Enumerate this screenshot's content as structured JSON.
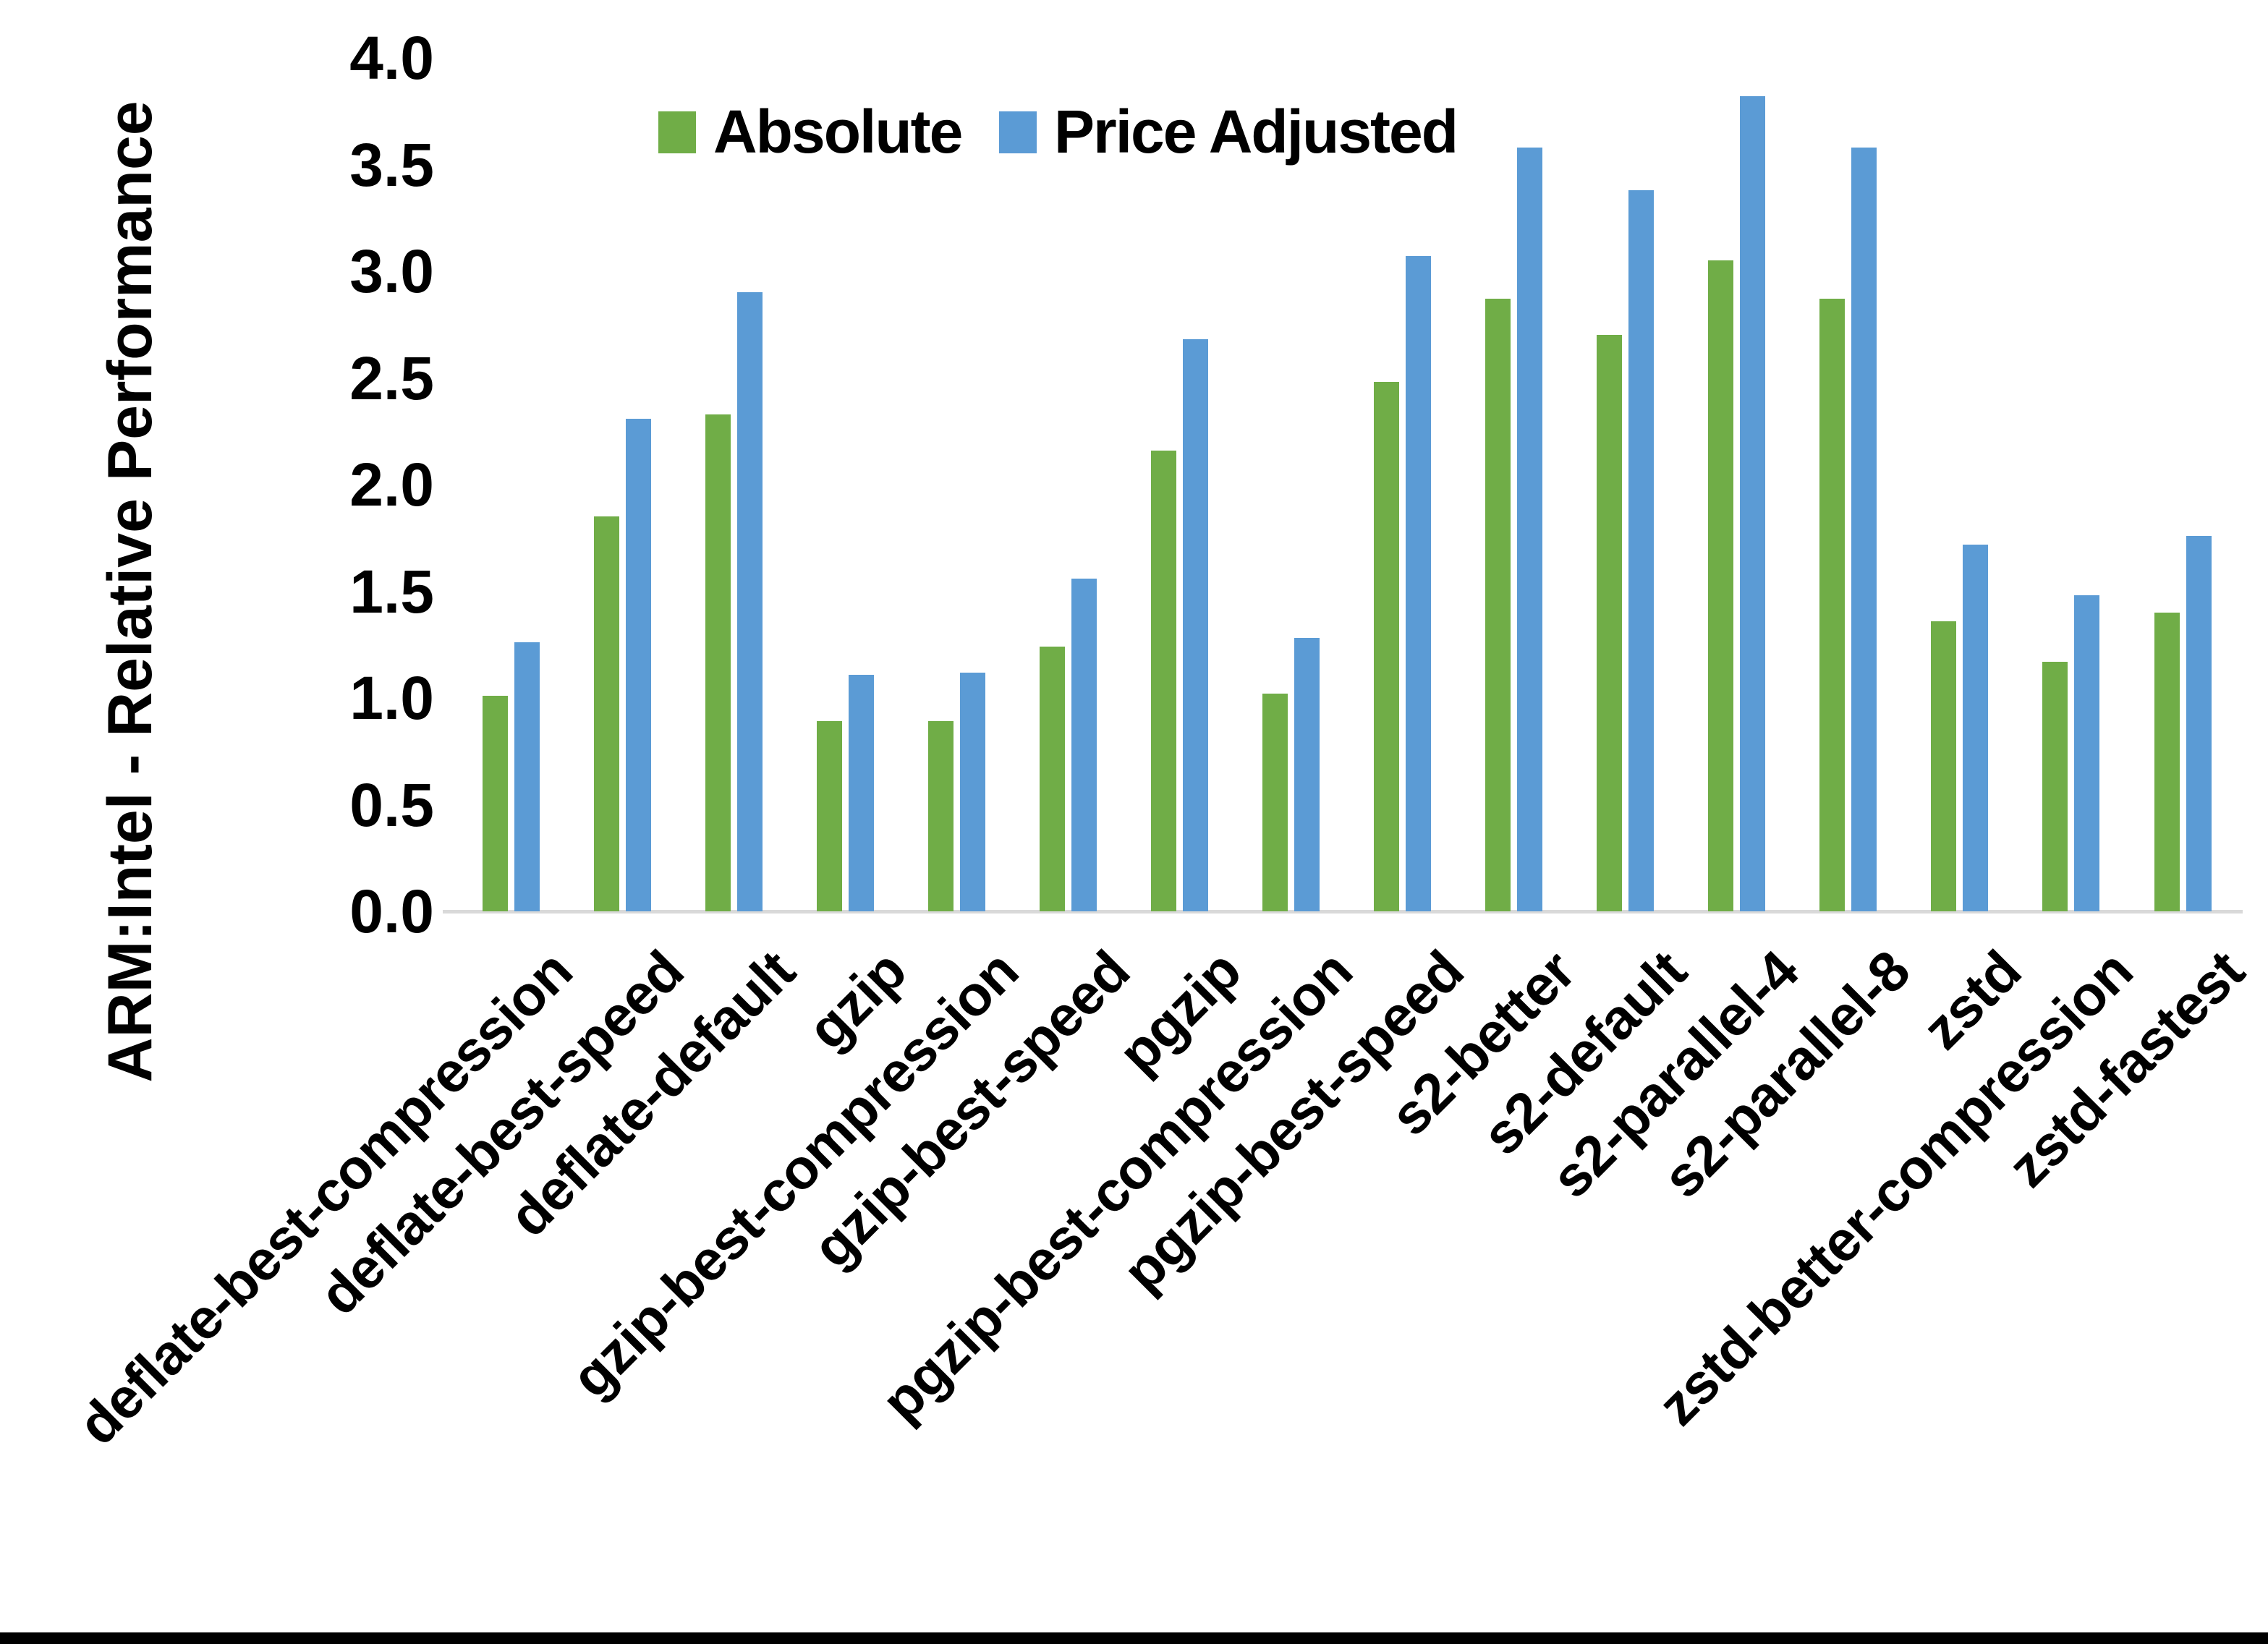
{
  "chart_data": {
    "type": "bar",
    "title": "",
    "xlabel": "",
    "ylabel": "ARM:Intel - Relative Performance",
    "ylim": [
      0.0,
      4.0
    ],
    "ytick_step": 0.5,
    "yticks": [
      "0.0",
      "0.5",
      "1.0",
      "1.5",
      "2.0",
      "2.5",
      "3.0",
      "3.5",
      "4.0"
    ],
    "grid": false,
    "legend_position": "top-center",
    "categories": [
      "deflate-best-compression",
      "deflate-best-speed",
      "deflate-default",
      "gzip",
      "gzip-best-compression",
      "gzip-best-speed",
      "pgzip",
      "pgzip-best-compression",
      "pgzip-best-speed",
      "s2-better",
      "s2-default",
      "s2-parallel-4",
      "s2-parallel-8",
      "zstd",
      "zstd-better-compression",
      "zstd-fastest"
    ],
    "series": [
      {
        "name": "Absolute",
        "color": "#70AD47",
        "values": [
          1.01,
          1.85,
          2.33,
          0.89,
          0.89,
          1.24,
          2.16,
          1.02,
          2.48,
          2.87,
          2.7,
          3.05,
          2.87,
          1.36,
          1.17,
          1.4
        ]
      },
      {
        "name": "Price Adjusted",
        "color": "#5B9BD5",
        "values": [
          1.26,
          2.31,
          2.9,
          1.11,
          1.12,
          1.56,
          2.68,
          1.28,
          3.07,
          3.58,
          3.38,
          3.82,
          3.58,
          1.72,
          1.48,
          1.76
        ]
      }
    ],
    "colors": {
      "axis_line": "#D9D9D9",
      "text": "#000000",
      "background": "#FFFFFF",
      "bottom_frame": "#000000"
    }
  }
}
